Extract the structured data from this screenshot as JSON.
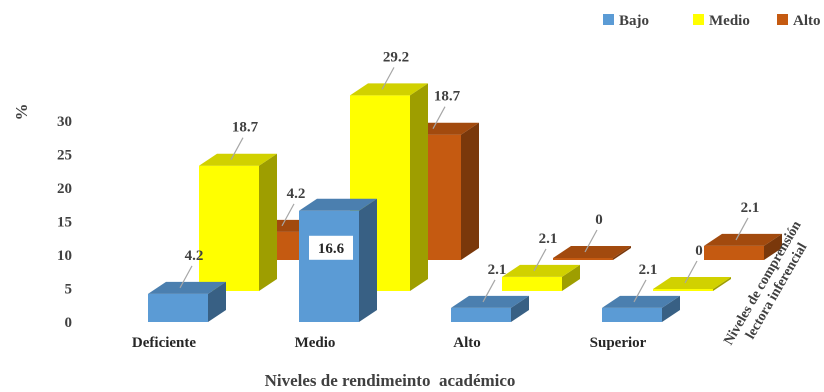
{
  "chart_data": {
    "type": "bar",
    "style": "3d-clustered",
    "categories": [
      "Deficiente",
      "Medio",
      "Alto",
      "Superior"
    ],
    "series": [
      {
        "name": "Bajo",
        "values": [
          4.2,
          16.6,
          2.1,
          2.1
        ],
        "color": "#5B9BD5"
      },
      {
        "name": "Medio",
        "values": [
          18.7,
          29.2,
          2.1,
          0
        ],
        "color": "#FFFF00"
      },
      {
        "name": "Alto",
        "values": [
          4.2,
          18.7,
          0,
          2.1
        ],
        "color": "#C55A11"
      }
    ],
    "data_labels": [
      [
        "4.2",
        "16.6",
        "2.1",
        "2.1"
      ],
      [
        "18.7",
        "29.2",
        "2.1",
        "0"
      ],
      [
        "4.2",
        "18.7",
        "0",
        "2.1"
      ]
    ],
    "ylabel": "%",
    "xlabel": "Niveles de rendimeinto  académico",
    "depth_label_lines": [
      "Niveles de comprensión",
      "lectora inferencial"
    ],
    "y_ticks": [
      0,
      5,
      10,
      15,
      20,
      25,
      30
    ],
    "ylim": [
      0,
      30
    ],
    "grid": false,
    "legend_position": "top-right"
  }
}
